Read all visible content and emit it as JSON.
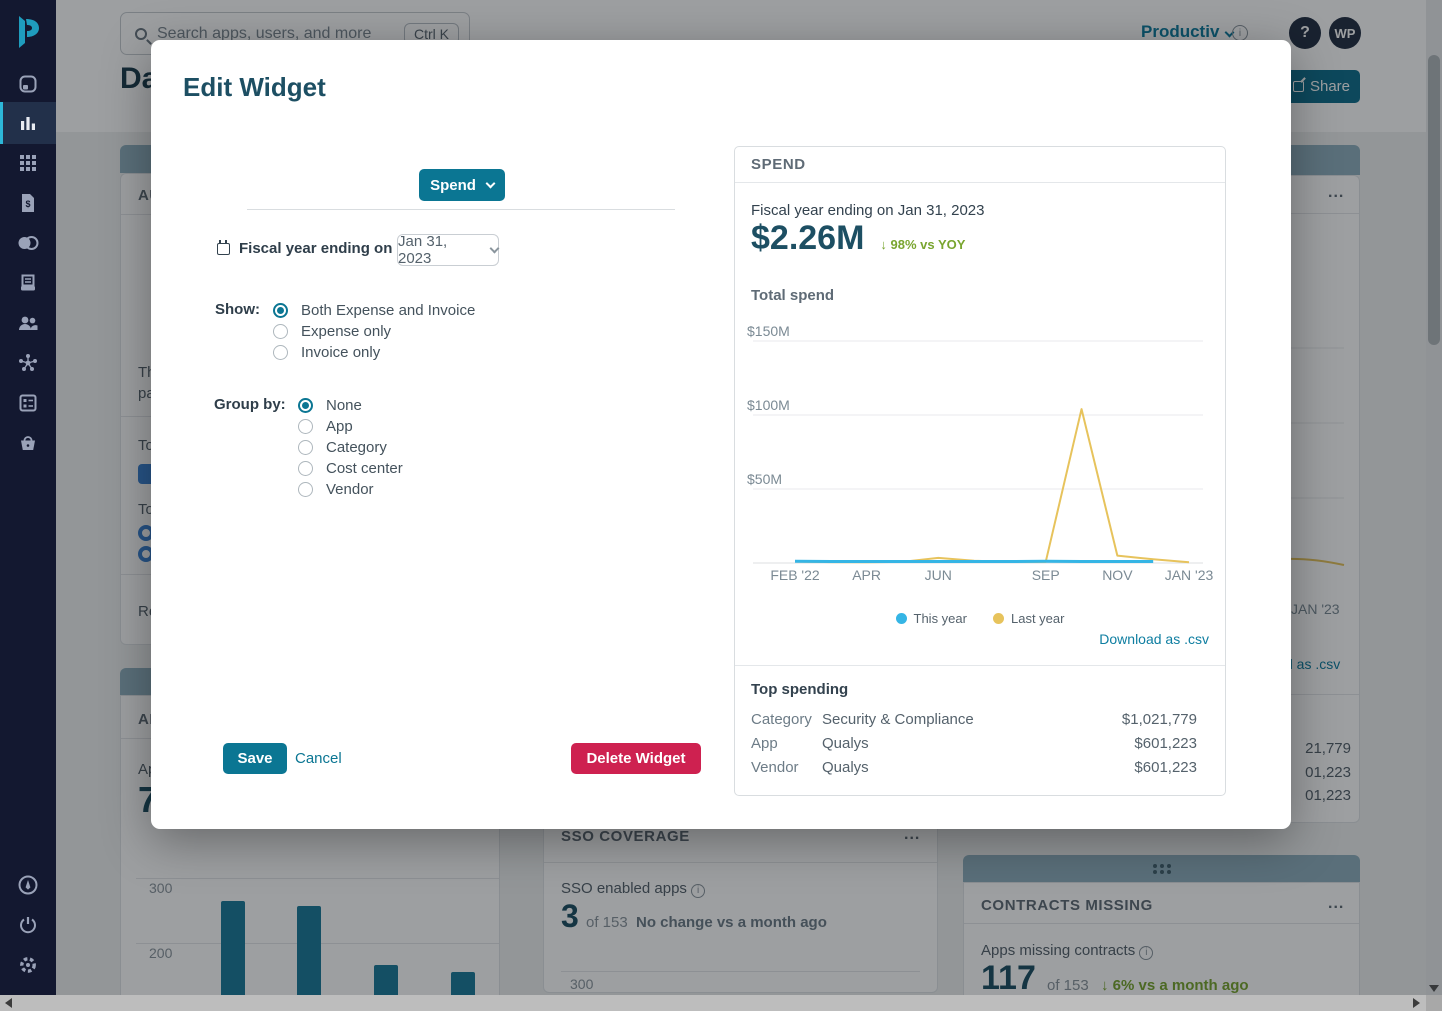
{
  "header": {
    "search": {
      "placeholder": "Search apps, users, and more",
      "shortcut": "Ctrl K"
    },
    "page_title": "Da",
    "org": "Productiv",
    "help": "?",
    "avatar": "WP",
    "share": "Share"
  },
  "modal": {
    "title": "Edit Widget",
    "type_label": "Spend",
    "fiscal_label": "Fiscal year ending on",
    "fiscal_value": "Jan 31, 2023",
    "show_label": "Show:",
    "show_options": [
      {
        "label": "Both Expense and Invoice",
        "selected": true
      },
      {
        "label": "Expense only",
        "selected": false
      },
      {
        "label": "Invoice only",
        "selected": false
      }
    ],
    "group_label": "Group by:",
    "group_options": [
      {
        "label": "None",
        "selected": true
      },
      {
        "label": "App",
        "selected": false
      },
      {
        "label": "Category",
        "selected": false
      },
      {
        "label": "Cost center",
        "selected": false
      },
      {
        "label": "Vendor",
        "selected": false
      }
    ],
    "save": "Save",
    "cancel": "Cancel",
    "delete": "Delete Widget"
  },
  "preview": {
    "title": "SPEND",
    "subtitle": "Fiscal year ending on Jan 31, 2023",
    "total": "$2.26M",
    "yoy": "↓ 98% vs YOY",
    "section": "Total spend",
    "download": "Download as .csv",
    "top": {
      "title": "Top spending",
      "rows": [
        {
          "label": "Category",
          "name": "Security & Compliance",
          "value": "$1,021,779"
        },
        {
          "label": "App",
          "name": "Qualys",
          "value": "$601,223"
        },
        {
          "label": "Vendor",
          "name": "Qualys",
          "value": "$601,223"
        }
      ]
    },
    "chart": {
      "type": "line",
      "unit": "$M",
      "ymax": 160,
      "y_ticks": [
        {
          "label": "$150M",
          "value": 150
        },
        {
          "label": "$100M",
          "value": 100
        },
        {
          "label": "$50M",
          "value": 50
        }
      ],
      "x_ticks": [
        {
          "label": "FEB '22",
          "index": 0
        },
        {
          "label": "APR",
          "index": 2
        },
        {
          "label": "JUN",
          "index": 4
        },
        {
          "label": "SEP",
          "index": 7
        },
        {
          "label": "NOV",
          "index": 9
        },
        {
          "label": "JAN '23",
          "index": 11
        }
      ],
      "series": [
        {
          "name": "This year",
          "color": "#35b5e5",
          "width": 3,
          "values": [
            1.2,
            1,
            1,
            1,
            1,
            1,
            1,
            1.2,
            1,
            1,
            1
          ]
        },
        {
          "name": "Last year",
          "color": "#e7c35c",
          "width": 2,
          "values": [
            1,
            0.6,
            0.5,
            0.8,
            3.5,
            1.5,
            0.8,
            0.8,
            104,
            5,
            2.5,
            0.5
          ]
        }
      ]
    }
  },
  "background": {
    "left_card": {
      "title": "AU",
      "line1": "Th",
      "line2": "pa",
      "to1": "To",
      "to2": "To",
      "renew": "Re"
    },
    "right_card": {
      "menu": "...",
      "x_tick": "JAN '23",
      "download_fragment": "d as .csv",
      "values": [
        "21,779",
        "01,223",
        "01,223"
      ]
    },
    "sso": {
      "title": "SSO COVERAGE",
      "menu": "...",
      "label": "SSO enabled apps",
      "big": "3",
      "of": "of 153",
      "delta": "No change vs a month ago",
      "tick": "300"
    },
    "contracts": {
      "title": "CONTRACTS MISSING",
      "menu": "...",
      "label": "Apps missing contracts",
      "big": "117",
      "of": "of 153",
      "delta": "↓ 6% vs a month ago"
    },
    "ai_card": {
      "title": "AI",
      "stat_label": "Ap",
      "big": "7",
      "chart": {
        "type": "bar",
        "ymax": 300,
        "y_ticks": [
          "300",
          "200",
          "100"
        ],
        "values": [
          265,
          257,
          166,
          155
        ],
        "stripe_index": 2
      }
    }
  }
}
